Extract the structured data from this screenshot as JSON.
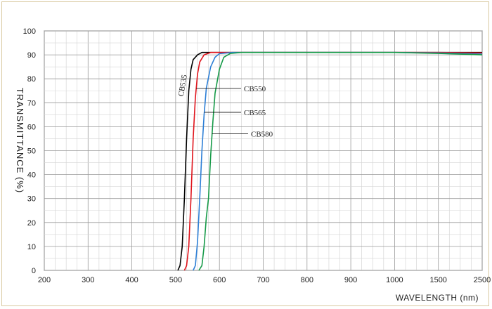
{
  "chart_data": {
    "type": "line",
    "xlabel": "WAVELENGTH (nm)",
    "ylabel": "TRANSMITTANCE  (%)",
    "ylim": [
      0,
      100
    ],
    "y_ticks": [
      0,
      10,
      20,
      30,
      40,
      50,
      60,
      70,
      80,
      90,
      100
    ],
    "x_ticks": [
      "200",
      "300",
      "400",
      "500",
      "600",
      "700",
      "800",
      "900",
      "1000",
      "1500",
      "2500"
    ],
    "grid": true,
    "series": [
      {
        "name": "CB535",
        "color": "#000000",
        "points": [
          [
            505,
            0
          ],
          [
            510,
            2
          ],
          [
            515,
            10
          ],
          [
            520,
            30
          ],
          [
            525,
            55
          ],
          [
            530,
            75
          ],
          [
            535,
            84
          ],
          [
            540,
            88
          ],
          [
            550,
            90
          ],
          [
            560,
            91
          ],
          [
            600,
            91
          ],
          [
            800,
            91
          ],
          [
            1000,
            91
          ],
          [
            1500,
            91
          ],
          [
            2500,
            91
          ]
        ]
      },
      {
        "name": "CB550",
        "color": "#e0141c",
        "points": [
          [
            520,
            0
          ],
          [
            525,
            2
          ],
          [
            530,
            10
          ],
          [
            535,
            30
          ],
          [
            540,
            55
          ],
          [
            545,
            72
          ],
          [
            550,
            82
          ],
          [
            555,
            87
          ],
          [
            565,
            90
          ],
          [
            580,
            91
          ],
          [
            620,
            91
          ],
          [
            800,
            91
          ],
          [
            1000,
            91
          ],
          [
            1500,
            91
          ],
          [
            2500,
            90.8
          ]
        ]
      },
      {
        "name": "CB565",
        "color": "#2d7fd6",
        "points": [
          [
            540,
            0
          ],
          [
            545,
            2
          ],
          [
            550,
            12
          ],
          [
            555,
            30
          ],
          [
            560,
            50
          ],
          [
            565,
            65
          ],
          [
            570,
            76
          ],
          [
            580,
            85
          ],
          [
            590,
            89
          ],
          [
            600,
            90.5
          ],
          [
            630,
            91
          ],
          [
            800,
            91
          ],
          [
            1000,
            91
          ],
          [
            1500,
            90.8
          ],
          [
            2500,
            90.3
          ]
        ]
      },
      {
        "name": "CB580",
        "color": "#169a48",
        "points": [
          [
            553,
            0
          ],
          [
            560,
            2
          ],
          [
            565,
            10
          ],
          [
            570,
            22
          ],
          [
            575,
            30
          ],
          [
            580,
            48
          ],
          [
            585,
            62
          ],
          [
            590,
            74
          ],
          [
            600,
            84
          ],
          [
            610,
            89
          ],
          [
            625,
            90.6
          ],
          [
            650,
            91
          ],
          [
            800,
            91
          ],
          [
            1000,
            91
          ],
          [
            1500,
            90.6
          ],
          [
            2500,
            90
          ]
        ]
      }
    ],
    "annotations": [
      "CB535",
      "CB550",
      "CB565",
      "CB580"
    ]
  }
}
